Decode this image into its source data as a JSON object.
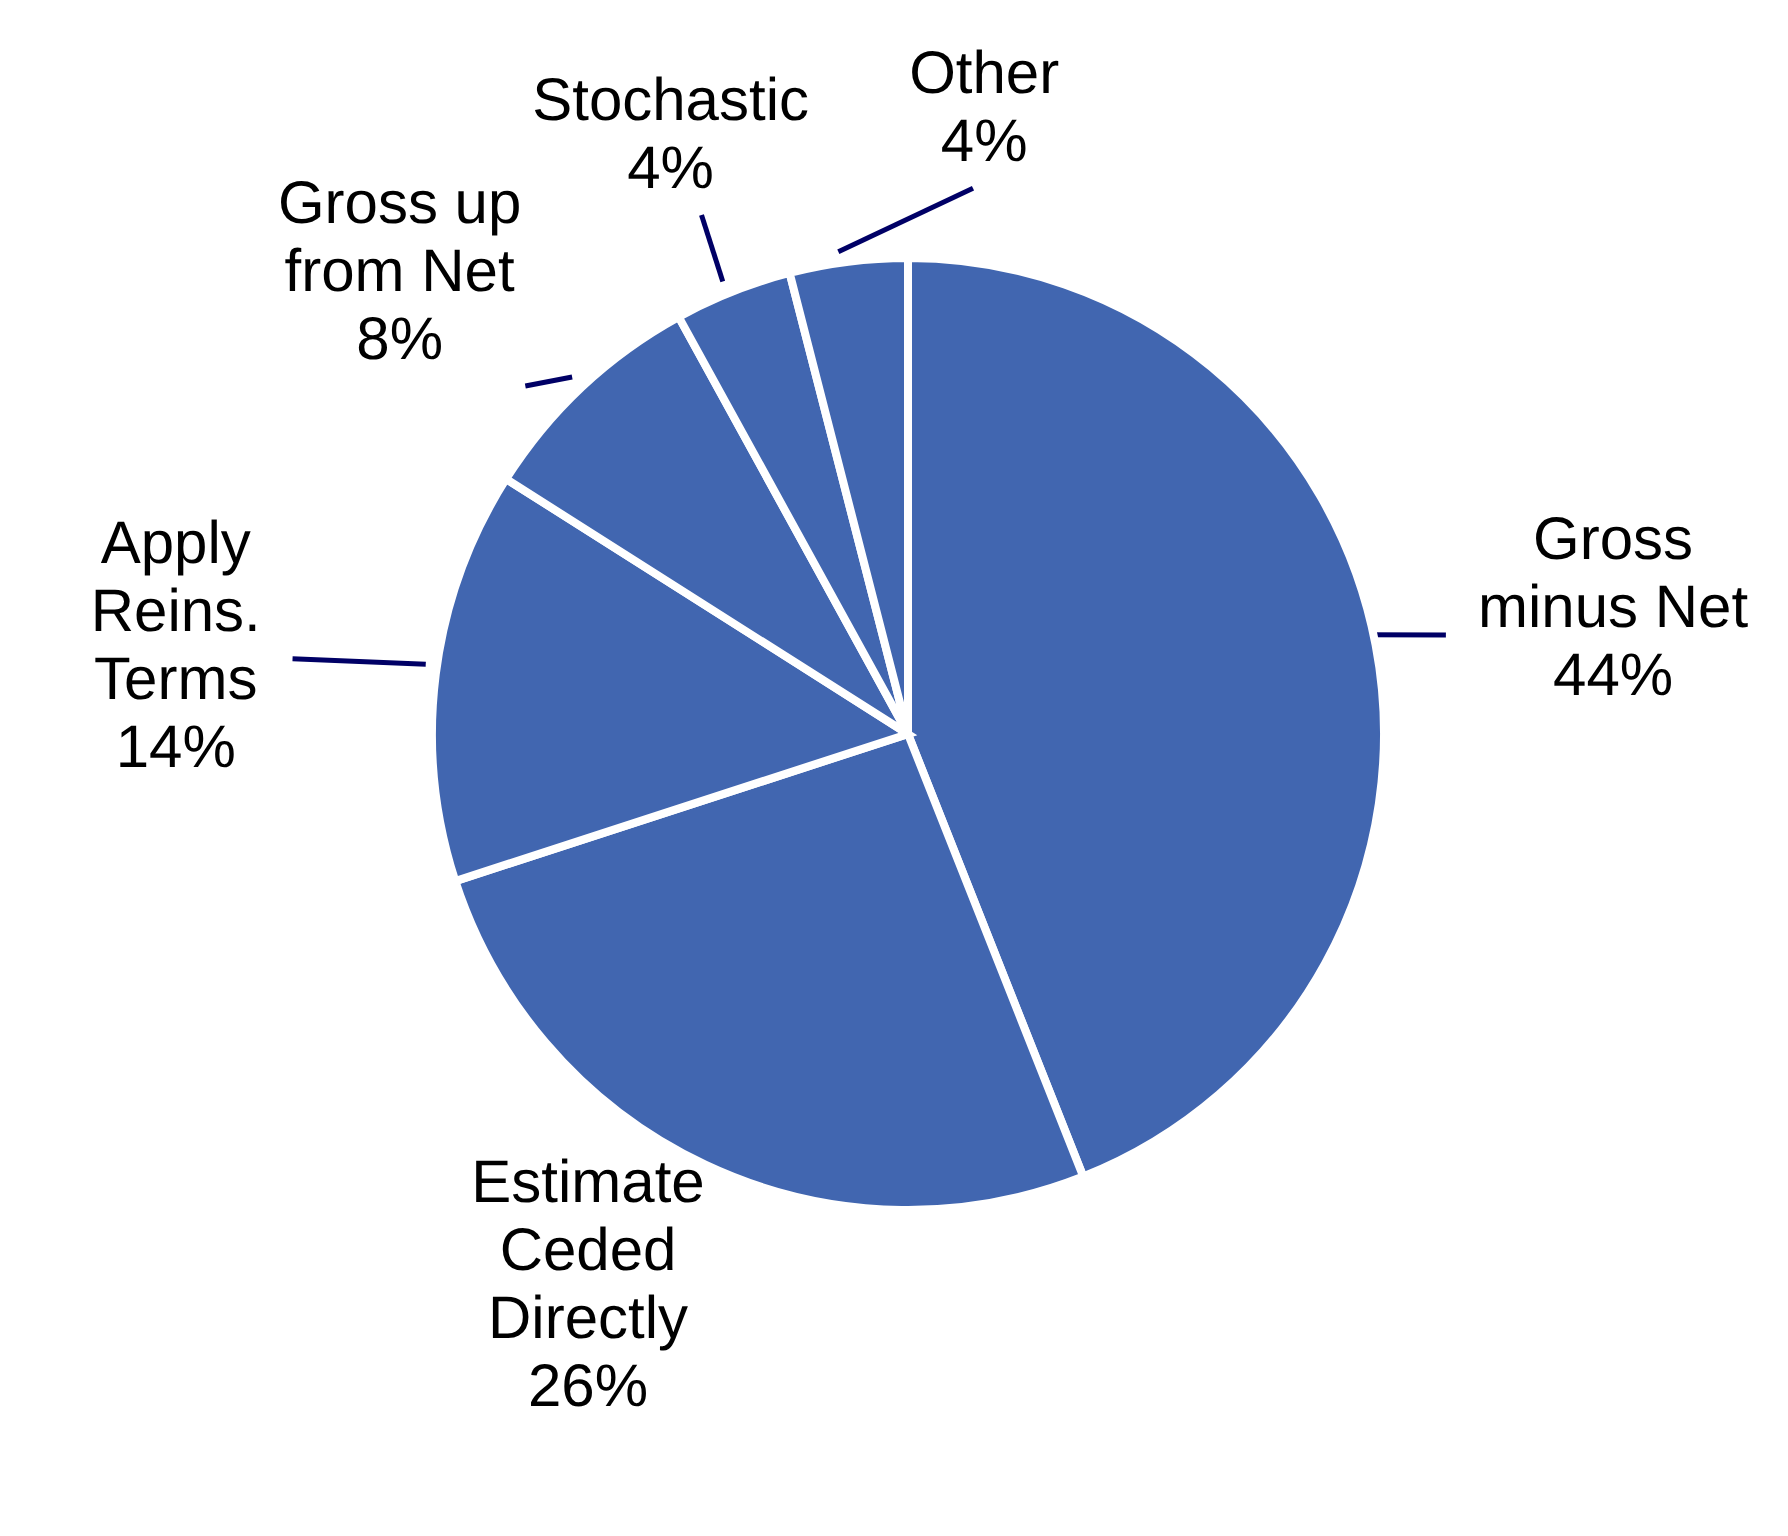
{
  "chart_data": {
    "type": "pie",
    "categories": [
      "Gross minus Net",
      "Estimate Ceded Directly",
      "Apply Reins. Terms",
      "Gross up from Net",
      "Stochastic",
      "Other"
    ],
    "values": [
      44,
      26,
      14,
      8,
      4,
      4
    ],
    "value_labels": [
      "44%",
      "26%",
      "14%",
      "8%",
      "4%",
      "4%"
    ],
    "colors": [
      "#4166b0",
      "#4166b0",
      "#4166b0",
      "#4166b0",
      "#4166b0",
      "#4166b0"
    ],
    "legend": false
  }
}
